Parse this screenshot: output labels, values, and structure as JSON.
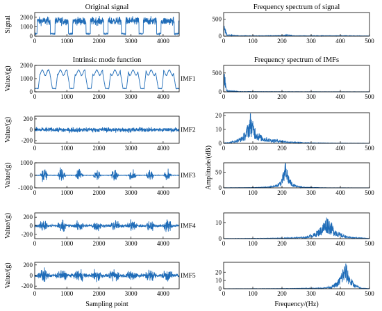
{
  "chart_data": [
    {
      "type": "line",
      "title": "Original signal",
      "xlabel": "",
      "ylabel": "Signal",
      "panel_label": "",
      "xlim": [
        0,
        4500
      ],
      "ylim": [
        0,
        2500
      ],
      "xticks": [
        0,
        1000,
        2000,
        3000,
        4000
      ],
      "yticks": [
        0,
        1000,
        2000
      ],
      "series": [
        {
          "values_description": "",
          "x": [
            0,
            600,
            1100,
            1700,
            2200,
            2750,
            3300,
            3850,
            4400
          ],
          "y": [
            1500,
            1450,
            1480,
            1470,
            1500,
            1460,
            1490,
            1470,
            1460
          ]
        }
      ],
      "color": "#1f6cb8"
    },
    {
      "type": "line",
      "title": "Intrinsic mode function",
      "xlabel": "",
      "ylabel": "Value/(g)",
      "panel_label": "IMF1",
      "xlim": [
        0,
        4500
      ],
      "ylim": [
        0,
        2000
      ],
      "xticks": [
        0,
        1000,
        2000,
        3000,
        4000
      ],
      "yticks": [
        0,
        1000,
        2000
      ],
      "series": [
        {
          "x": [
            0,
            600,
            1100,
            1700,
            2200,
            2750,
            3300,
            3850,
            4400
          ],
          "y": [
            1500,
            1450,
            1500,
            1480,
            1500,
            1450,
            1500,
            1470,
            1450
          ]
        }
      ],
      "color": "#1f6cb8"
    },
    {
      "type": "line",
      "title": "",
      "xlabel": "",
      "ylabel": "Value/(g)",
      "panel_label": "IMF2",
      "xlim": [
        0,
        4500
      ],
      "ylim": [
        -250,
        250
      ],
      "xticks": [
        0,
        1000,
        2000,
        3000,
        4000
      ],
      "yticks": [
        -200,
        0,
        200
      ],
      "series": [
        {
          "x": [
            0,
            4500
          ],
          "y": [
            0,
            0
          ]
        }
      ],
      "color": "#1f6cb8"
    },
    {
      "type": "line",
      "title": "",
      "xlabel": "",
      "ylabel": "Value/(g)",
      "panel_label": "IMF3",
      "xlim": [
        0,
        4500
      ],
      "ylim": [
        -1000,
        1000
      ],
      "xticks": [
        0,
        1000,
        2000,
        3000,
        4000
      ],
      "yticks": [
        -1000,
        0,
        1000
      ],
      "series": [
        {
          "x": [
            0,
            4500
          ],
          "y": [
            0,
            0
          ]
        }
      ],
      "color": "#1f6cb8"
    },
    {
      "type": "line",
      "title": "",
      "xlabel": "",
      "ylabel": "Value/(g)",
      "panel_label": "IMF4",
      "xlim": [
        0,
        4500
      ],
      "ylim": [
        -300,
        300
      ],
      "xticks": [
        0,
        1000,
        2000,
        3000,
        4000
      ],
      "yticks": [
        -200,
        0,
        200
      ],
      "series": [
        {
          "x": [
            0,
            4500
          ],
          "y": [
            0,
            0
          ]
        }
      ],
      "color": "#1f6cb8"
    },
    {
      "type": "line",
      "title": "",
      "xlabel": "Sampling point",
      "ylabel": "Value/(g)",
      "panel_label": "IMF5",
      "xlim": [
        0,
        4500
      ],
      "ylim": [
        -250,
        250
      ],
      "xticks": [
        0,
        1000,
        2000,
        3000,
        4000
      ],
      "yticks": [
        -200,
        0,
        200
      ],
      "series": [
        {
          "x": [
            0,
            4500
          ],
          "y": [
            0,
            0
          ]
        }
      ],
      "color": "#1f6cb8"
    },
    {
      "type": "line",
      "title": "Frequency spectrum of signal",
      "xlabel": "",
      "ylabel": "",
      "xlim": [
        0,
        500
      ],
      "ylim": [
        0,
        700
      ],
      "xticks": [
        0,
        100,
        200,
        300,
        400,
        500
      ],
      "yticks": [
        0,
        500
      ],
      "series": [
        {
          "x": [
            0,
            3,
            8,
            15,
            60,
            200,
            220,
            240,
            420,
            500
          ],
          "y": [
            20,
            650,
            120,
            40,
            15,
            20,
            45,
            15,
            18,
            8
          ]
        }
      ],
      "color": "#1f6cb8"
    },
    {
      "type": "line",
      "title": "Frequency spectrum of IMFs",
      "xlabel": "",
      "ylabel": "",
      "xlim": [
        0,
        500
      ],
      "ylim": [
        0,
        700
      ],
      "xticks": [
        0,
        100,
        200,
        300,
        400,
        500
      ],
      "yticks": [
        0,
        500
      ],
      "series": [
        {
          "x": [
            0,
            3,
            8,
            15,
            60,
            200,
            500
          ],
          "y": [
            20,
            620,
            110,
            30,
            8,
            5,
            3
          ]
        }
      ],
      "color": "#1f6cb8"
    },
    {
      "type": "line",
      "title": "",
      "xlabel": "",
      "ylabel": "",
      "xlim": [
        0,
        500
      ],
      "ylim": [
        0,
        22
      ],
      "xticks": [
        0,
        100,
        200,
        300,
        400,
        500
      ],
      "yticks": [
        0,
        10,
        20
      ],
      "series": [
        {
          "x": [
            0,
            20,
            40,
            60,
            75,
            85,
            92,
            100,
            115,
            130,
            160,
            200,
            230,
            300,
            400,
            500
          ],
          "y": [
            0.3,
            0.8,
            2,
            4,
            8,
            14,
            20,
            14,
            8,
            5,
            3,
            2,
            1,
            0.4,
            0.2,
            0.1
          ]
        }
      ],
      "color": "#1f6cb8"
    },
    {
      "type": "line",
      "title": "",
      "xlabel": "",
      "ylabel": "Amplitude/(dB)",
      "xlim": [
        0,
        500
      ],
      "ylim": [
        0,
        80
      ],
      "xticks": [
        0,
        100,
        200,
        300,
        400,
        500
      ],
      "yticks": [
        0,
        50
      ],
      "series": [
        {
          "x": [
            0,
            100,
            150,
            180,
            195,
            205,
            212,
            218,
            225,
            235,
            250,
            280,
            350,
            500
          ],
          "y": [
            0.5,
            1,
            3,
            8,
            20,
            45,
            75,
            55,
            30,
            15,
            6,
            2,
            0.5,
            0.2
          ]
        }
      ],
      "color": "#1f6cb8"
    },
    {
      "type": "line",
      "title": "",
      "xlabel": "",
      "ylabel": "",
      "xlim": [
        0,
        500
      ],
      "ylim": [
        0,
        16
      ],
      "xticks": [
        0,
        100,
        200,
        300,
        400,
        500
      ],
      "yticks": [
        0,
        10
      ],
      "series": [
        {
          "x": [
            0,
            100,
            200,
            280,
            310,
            330,
            345,
            355,
            365,
            380,
            400,
            430,
            500
          ],
          "y": [
            0.1,
            0.2,
            0.4,
            1,
            3,
            6,
            10,
            13,
            10,
            6,
            3,
            1,
            0.2
          ]
        }
      ],
      "color": "#1f6cb8"
    },
    {
      "type": "line",
      "title": "",
      "xlabel": "Frequency/(Hz)",
      "ylabel": "",
      "xlim": [
        0,
        500
      ],
      "ylim": [
        0,
        32
      ],
      "xticks": [
        0,
        100,
        200,
        300,
        400,
        500
      ],
      "yticks": [
        0,
        10,
        20
      ],
      "series": [
        {
          "x": [
            0,
            200,
            340,
            370,
            390,
            400,
            410,
            418,
            425,
            435,
            450,
            470,
            500
          ],
          "y": [
            0.1,
            0.3,
            1,
            3,
            8,
            15,
            24,
            29,
            22,
            12,
            5,
            1,
            0.2
          ]
        }
      ],
      "color": "#1f6cb8"
    }
  ]
}
